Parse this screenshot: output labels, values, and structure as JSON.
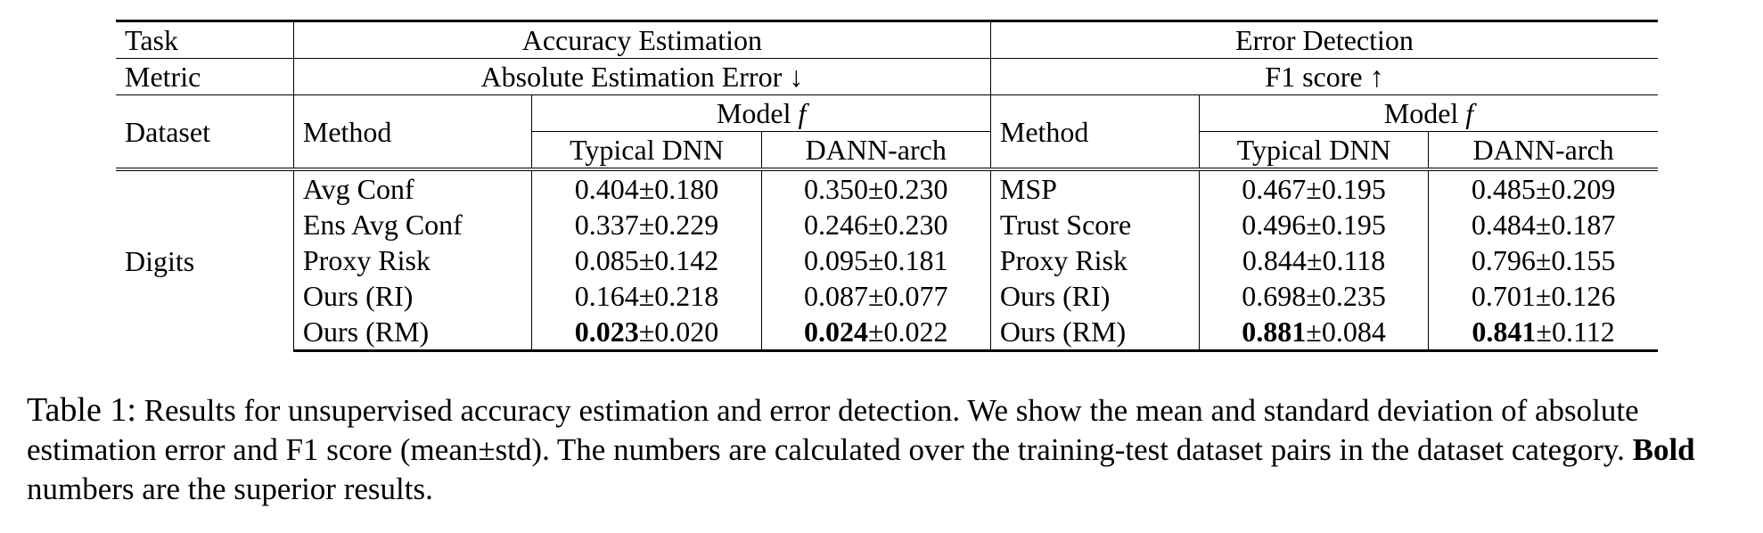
{
  "table": {
    "header": {
      "task_label": "Task",
      "task_accuracy": "Accuracy Estimation",
      "task_error": "Error Detection",
      "metric_label": "Metric",
      "metric_accuracy": "Absolute Estimation Error ↓",
      "metric_error": "F1 score ↑",
      "dataset_label": "Dataset",
      "method_label": "Method",
      "model_label": "Model",
      "model_symbol": "f",
      "col_typical": "Typical DNN",
      "col_dann": "DANN-arch"
    },
    "dataset": "Digits",
    "rows": [
      {
        "method_acc": "Avg Conf",
        "acc_typical": {
          "bold": "",
          "rest": "0.404±0.180"
        },
        "acc_dann": {
          "bold": "",
          "rest": "0.350±0.230"
        },
        "method_err": "MSP",
        "err_typical": {
          "bold": "",
          "rest": "0.467±0.195"
        },
        "err_dann": {
          "bold": "",
          "rest": "0.485±0.209"
        }
      },
      {
        "method_acc": "Ens Avg Conf",
        "acc_typical": {
          "bold": "",
          "rest": "0.337±0.229"
        },
        "acc_dann": {
          "bold": "",
          "rest": "0.246±0.230"
        },
        "method_err": "Trust Score",
        "err_typical": {
          "bold": "",
          "rest": "0.496±0.195"
        },
        "err_dann": {
          "bold": "",
          "rest": "0.484±0.187"
        }
      },
      {
        "method_acc": "Proxy Risk",
        "acc_typical": {
          "bold": "",
          "rest": "0.085±0.142"
        },
        "acc_dann": {
          "bold": "",
          "rest": "0.095±0.181"
        },
        "method_err": "Proxy Risk",
        "err_typical": {
          "bold": "",
          "rest": "0.844±0.118"
        },
        "err_dann": {
          "bold": "",
          "rest": "0.796±0.155"
        }
      },
      {
        "method_acc": "Ours (RI)",
        "acc_typical": {
          "bold": "",
          "rest": "0.164±0.218"
        },
        "acc_dann": {
          "bold": "",
          "rest": "0.087±0.077"
        },
        "method_err": "Ours (RI)",
        "err_typical": {
          "bold": "",
          "rest": "0.698±0.235"
        },
        "err_dann": {
          "bold": "",
          "rest": "0.701±0.126"
        }
      },
      {
        "method_acc": "Ours (RM)",
        "acc_typical": {
          "bold": "0.023",
          "rest": "±0.020"
        },
        "acc_dann": {
          "bold": "0.024",
          "rest": "±0.022"
        },
        "method_err": "Ours (RM)",
        "err_typical": {
          "bold": "0.881",
          "rest": "±0.084"
        },
        "err_dann": {
          "bold": "0.841",
          "rest": "±0.112"
        }
      }
    ]
  },
  "caption": {
    "label": "Table 1:",
    "part1": " Results for unsupervised accuracy estimation and error detection. We show the mean and standard deviation of absolute estimation error and F1 score (mean±std). The numbers are calculated over the training-test dataset pairs in the dataset category. ",
    "bold_word": "Bold",
    "part2": " numbers are the superior results."
  }
}
